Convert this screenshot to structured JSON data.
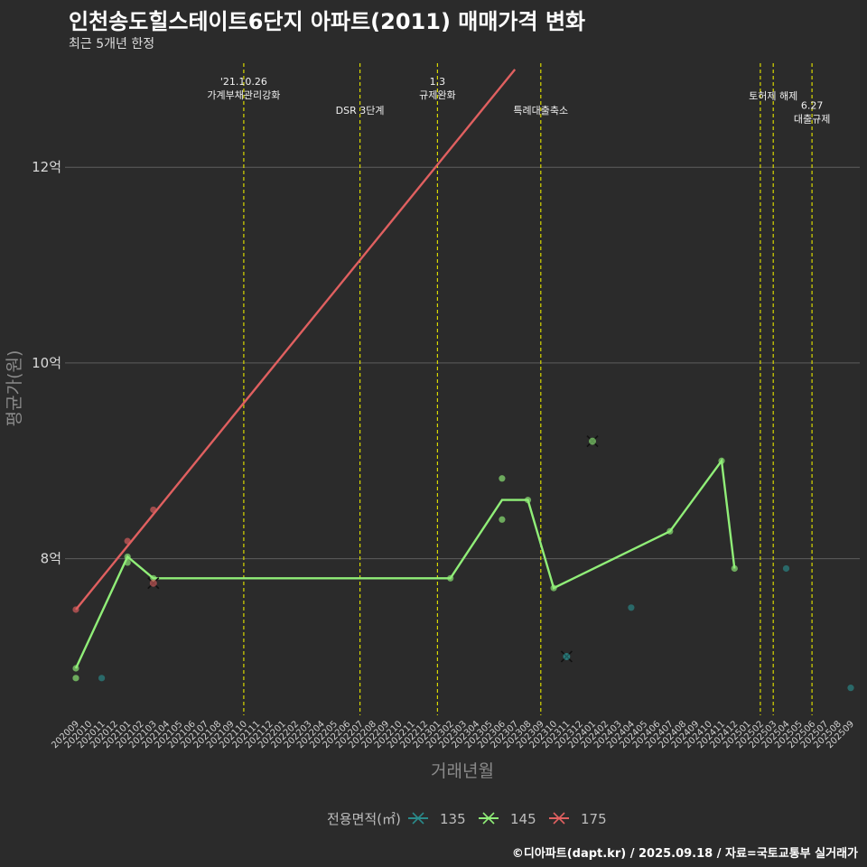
{
  "header": {
    "title": "인천송도힐스테이트6단지 아파트(2011) 매매가격 변화",
    "subtitle": "최근 5개년 한정"
  },
  "caption": "©디아파트(dapt.kr) / 2025.09.18 / 자료=국토교통부 실거래가",
  "colors": {
    "background": "#2b2b2b",
    "grid": "#5e5e5e",
    "event_line": "#d8d800"
  },
  "chart_data": {
    "type": "line",
    "xlabel": "거래년월",
    "ylabel": "평균가(원)",
    "legend_title": "전용면적(㎡)",
    "legend_position": "bottom",
    "grid": true,
    "ylim": [
      6.4,
      13.1
    ],
    "y_ticks": [
      {
        "value": 8,
        "label": "8억"
      },
      {
        "value": 10,
        "label": "10억"
      },
      {
        "value": 12,
        "label": "12억"
      }
    ],
    "categories": [
      "202009",
      "202010",
      "202011",
      "202012",
      "202101",
      "202102",
      "202103",
      "202104",
      "202105",
      "202106",
      "202107",
      "202108",
      "202109",
      "202110",
      "202111",
      "202112",
      "202201",
      "202202",
      "202203",
      "202204",
      "202205",
      "202206",
      "202207",
      "202208",
      "202209",
      "202210",
      "202211",
      "202212",
      "202301",
      "202302",
      "202303",
      "202304",
      "202305",
      "202306",
      "202307",
      "202308",
      "202309",
      "202310",
      "202311",
      "202312",
      "202401",
      "202402",
      "202403",
      "202404",
      "202405",
      "202406",
      "202407",
      "202408",
      "202409",
      "202410",
      "202411",
      "202412",
      "202501",
      "202502",
      "202503",
      "202504",
      "202505",
      "202506",
      "202507",
      "202508",
      "202509"
    ],
    "series": [
      {
        "name": "135",
        "color": "#2a8a8a",
        "line": [],
        "points": [
          [
            "202011",
            6.78
          ],
          [
            "202311",
            7.0
          ],
          [
            "202404",
            7.5
          ],
          [
            "202504",
            7.9
          ],
          [
            "202509",
            6.68
          ]
        ],
        "cross": [
          [
            "202311",
            7.0
          ]
        ]
      },
      {
        "name": "145",
        "color": "#90ee78",
        "line": [
          [
            "202009",
            6.88
          ],
          [
            "202101",
            8.02
          ],
          [
            "202103",
            7.8
          ],
          [
            "202302",
            7.8
          ],
          [
            "202306",
            8.6
          ],
          [
            "202308",
            8.6
          ],
          [
            "202310",
            7.7
          ],
          [
            "202407",
            8.28
          ],
          [
            "202411",
            9.0
          ],
          [
            "202412",
            7.9
          ]
        ],
        "points": [
          [
            "202009",
            6.88
          ],
          [
            "202009",
            6.78
          ],
          [
            "202101",
            7.96
          ],
          [
            "202101",
            8.02
          ],
          [
            "202103",
            7.8
          ],
          [
            "202302",
            7.8
          ],
          [
            "202306",
            8.82
          ],
          [
            "202306",
            8.4
          ],
          [
            "202308",
            8.6
          ],
          [
            "202310",
            7.7
          ],
          [
            "202407",
            8.28
          ],
          [
            "202411",
            9.0
          ],
          [
            "202412",
            7.9
          ]
        ],
        "cross": [
          [
            "202401",
            9.2
          ]
        ]
      },
      {
        "name": "175",
        "color": "#e06060",
        "line": [
          [
            "202009",
            7.48
          ],
          [
            "202307",
            13.0
          ]
        ],
        "points": [
          [
            "202009",
            7.48
          ],
          [
            "202101",
            8.18
          ],
          [
            "202103",
            8.5
          ]
        ],
        "cross": [
          [
            "202103",
            7.75
          ]
        ]
      }
    ],
    "events": [
      {
        "x": "202110",
        "lines": [
          "'21.10.26",
          "가계부채관리강화"
        ],
        "row": 0
      },
      {
        "x": "202207",
        "lines": [
          "DSR 3단계"
        ],
        "row": 2
      },
      {
        "x": "202301",
        "lines": [
          "1.3",
          "규제완화"
        ],
        "row": 0
      },
      {
        "x": "202309",
        "lines": [
          "특례대출축소"
        ],
        "row": 2
      },
      {
        "x": "202502",
        "lines": [],
        "row": 0
      },
      {
        "x": "202503",
        "lines": [
          "토허제 해제"
        ],
        "row": 1
      },
      {
        "x": "202506",
        "lines": [
          "6.27",
          "대출규제"
        ],
        "row": 1.65
      }
    ]
  }
}
